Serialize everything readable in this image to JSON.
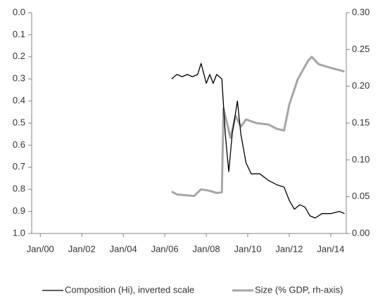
{
  "chart_data": {
    "type": "line",
    "xlim": [
      "1999-08",
      "2014-10"
    ],
    "xticks": [
      {
        "value": "2000-01",
        "label": "Jan/00"
      },
      {
        "value": "2002-01",
        "label": "Jan/02"
      },
      {
        "value": "2004-01",
        "label": "Jan/04"
      },
      {
        "value": "2006-01",
        "label": "Jan/06"
      },
      {
        "value": "2008-01",
        "label": "Jan/08"
      },
      {
        "value": "2010-01",
        "label": "Jan/10"
      },
      {
        "value": "2012-01",
        "label": "Jan/12"
      },
      {
        "value": "2014-01",
        "label": "Jan/14"
      }
    ],
    "ylim": [
      0,
      1
    ],
    "y_inverted": true,
    "yticks": [
      {
        "value": 0,
        "label": "0.0"
      },
      0.1,
      0.2,
      0.3,
      0.4,
      0.5,
      0.6,
      0.7,
      0.8,
      0.9,
      {
        "value": 1,
        "label": "1.0"
      }
    ],
    "y2lim": [
      0,
      0.3
    ],
    "y2ticks": [
      {
        "value": 0,
        "label": "0.00"
      },
      0.05,
      {
        "value": 0.1,
        "label": "0.10"
      },
      0.15,
      {
        "value": 0.2,
        "label": "0.20"
      },
      0.25,
      {
        "value": 0.3,
        "label": "0.30"
      }
    ],
    "legend": "bottom",
    "series": [
      {
        "name": "Composition (Hi), inverted scale",
        "color": "#000000",
        "x": [
          "2006-05",
          "2006-08",
          "2006-11",
          "2007-02",
          "2007-05",
          "2007-08",
          "2007-10",
          "2008-01",
          "2008-03",
          "2008-05",
          "2008-07",
          "2008-10",
          "2008-12",
          "2009-02",
          "2009-04",
          "2009-07",
          "2009-09",
          "2009-12",
          "2010-03",
          "2010-08",
          "2011-01",
          "2011-06",
          "2011-10",
          "2012-01",
          "2012-04",
          "2012-07",
          "2012-10",
          "2013-01",
          "2013-04",
          "2013-08",
          "2014-01",
          "2014-06",
          "2014-09"
        ],
        "values": [
          0.3,
          0.28,
          0.29,
          0.28,
          0.29,
          0.28,
          0.23,
          0.32,
          0.28,
          0.32,
          0.28,
          0.3,
          0.55,
          0.72,
          0.55,
          0.4,
          0.55,
          0.68,
          0.73,
          0.73,
          0.76,
          0.78,
          0.79,
          0.85,
          0.89,
          0.87,
          0.88,
          0.92,
          0.93,
          0.91,
          0.91,
          0.9,
          0.91
        ]
      },
      {
        "name": "Size (% GDP, rh-axis)",
        "color": "#a6a6a6",
        "axis": "y2",
        "x": [
          "2006-05",
          "2006-08",
          "2007-01",
          "2007-06",
          "2007-10",
          "2008-03",
          "2008-07",
          "2008-10",
          "2008-11",
          "2009-03",
          "2009-06",
          "2009-09",
          "2009-12",
          "2010-06",
          "2011-01",
          "2011-06",
          "2011-10",
          "2012-01",
          "2012-06",
          "2012-12",
          "2013-02",
          "2013-06",
          "2014-01",
          "2014-09"
        ],
        "values": [
          0.057,
          0.053,
          0.052,
          0.051,
          0.06,
          0.058,
          0.055,
          0.056,
          0.17,
          0.13,
          0.16,
          0.145,
          0.155,
          0.15,
          0.148,
          0.142,
          0.14,
          0.175,
          0.21,
          0.235,
          0.24,
          0.23,
          0.225,
          0.22
        ]
      }
    ]
  }
}
